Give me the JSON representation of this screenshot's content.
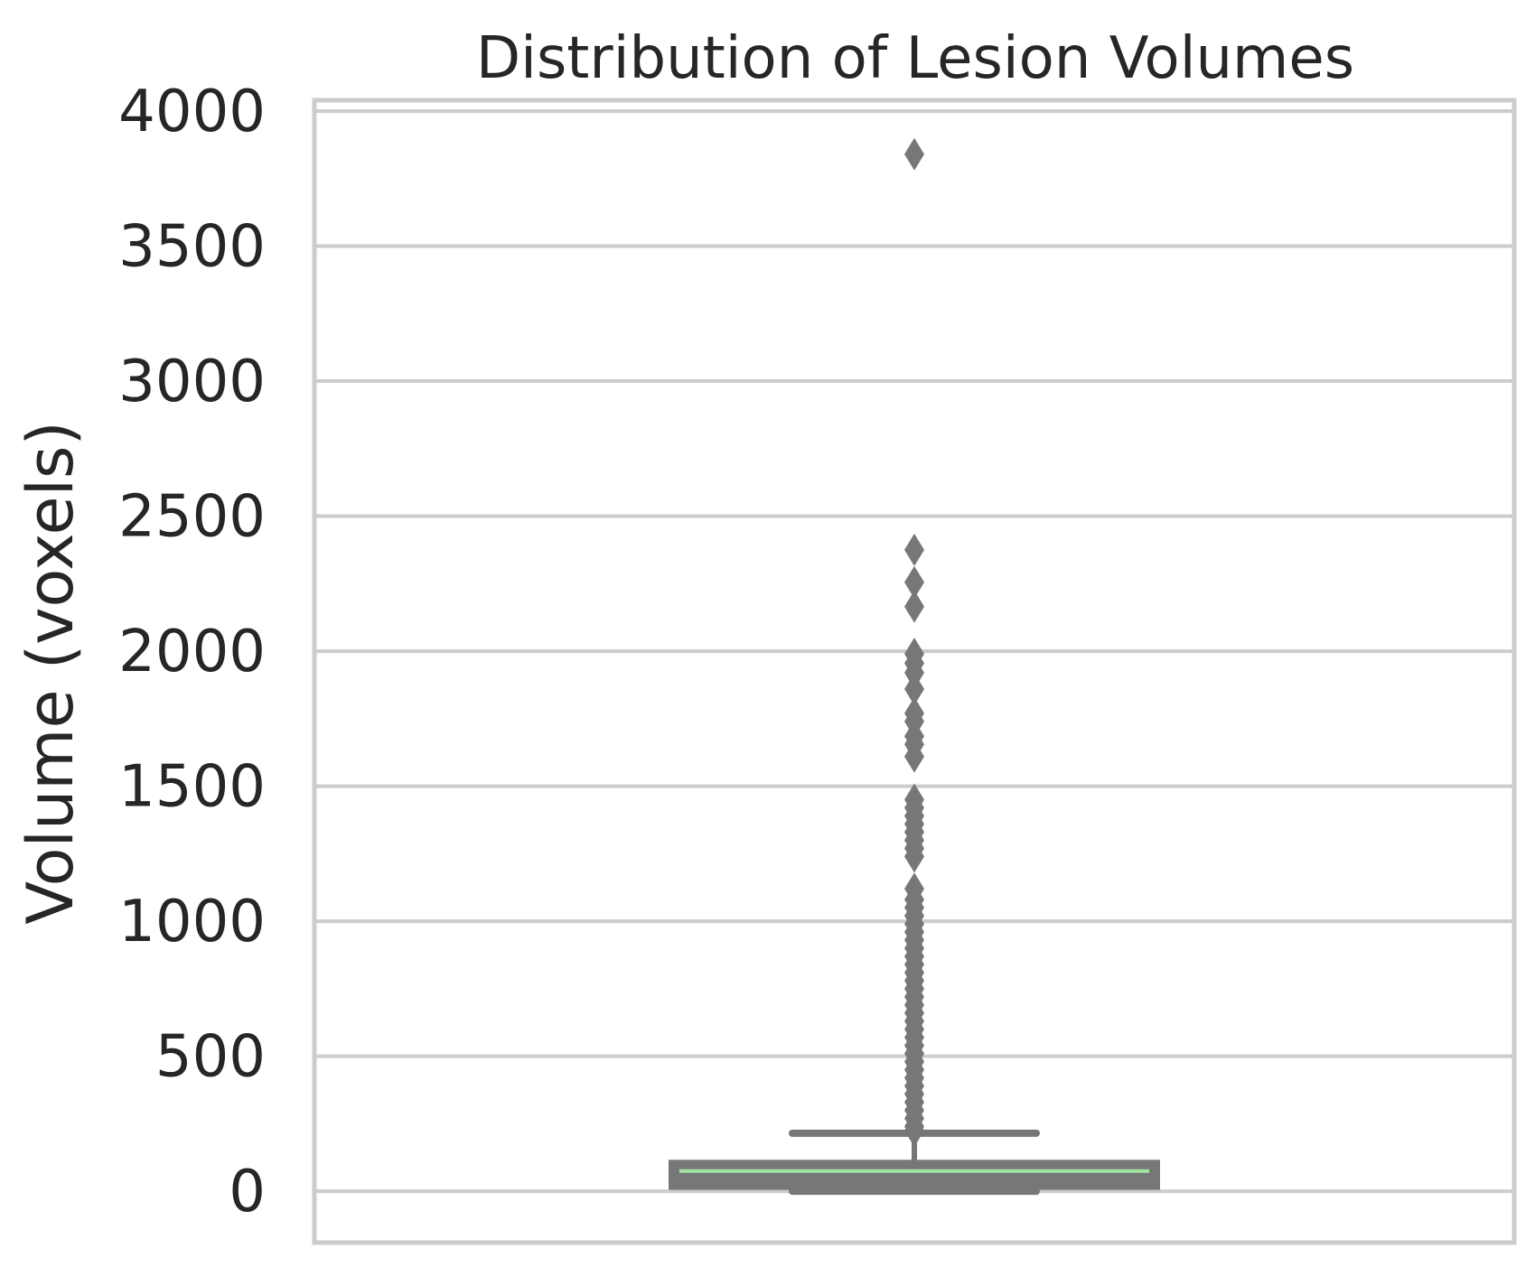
{
  "chart_data": {
    "type": "box",
    "title": "Distribution of Lesion Volumes",
    "xlabel": "",
    "ylabel": "Volume (voxels)",
    "ylim": [
      -190,
      4040
    ],
    "yticks": [
      0,
      500,
      1000,
      1500,
      2000,
      2500,
      3000,
      3500,
      4000
    ],
    "ytick_labels": [
      "0",
      "500",
      "1000",
      "1500",
      "2000",
      "2500",
      "3000",
      "3500",
      "4000"
    ],
    "grid": true,
    "box": {
      "whisker_low": 0,
      "q1": 12,
      "median": 75,
      "q3": 110,
      "whisker_high": 215
    },
    "outliers": [
      3840,
      2375,
      2255,
      2165,
      1990,
      1955,
      1920,
      1860,
      1770,
      1740,
      1685,
      1655,
      1610,
      1450,
      1420,
      1390,
      1360,
      1330,
      1300,
      1270,
      1240,
      1120,
      1080,
      1050,
      1020,
      990,
      960,
      930,
      900,
      870,
      840,
      810,
      780,
      750,
      720,
      690,
      660,
      630,
      600,
      570,
      540,
      510,
      480,
      450,
      420,
      390,
      360,
      330,
      300,
      270,
      240,
      225
    ],
    "colors": {
      "box_fill": "#777777",
      "box_edge": "#777777",
      "median": "#a3e4a3",
      "grid": "#cccccc",
      "spine": "#cccccc",
      "text": "#262626"
    }
  }
}
